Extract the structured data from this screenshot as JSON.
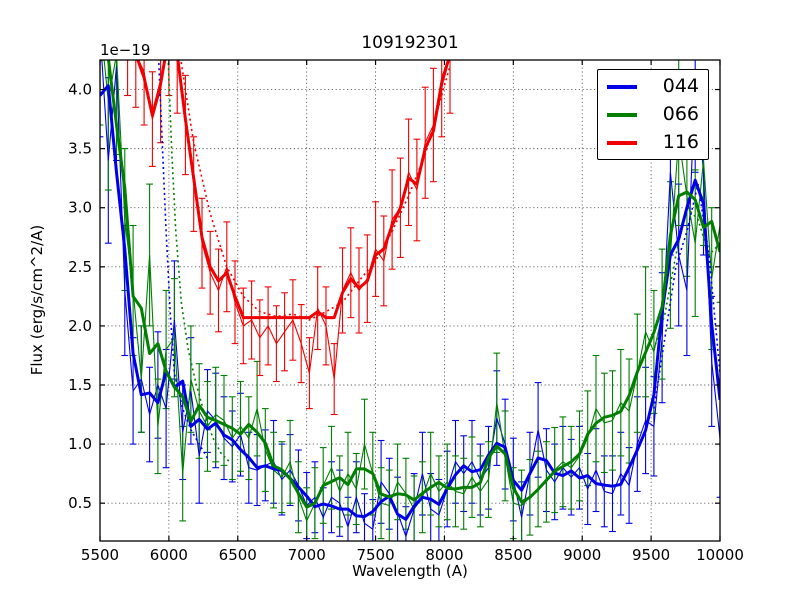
{
  "chart_data": {
    "type": "line",
    "title": "109192301",
    "xlabel": "Wavelength (A)",
    "ylabel": "Flux (erg/s/cm^2/A)",
    "y_offset_label": "1e−19",
    "xlim": [
      5500,
      10000
    ],
    "ylim": [
      0.18,
      4.25
    ],
    "xticks": [
      5500,
      6000,
      6500,
      7000,
      7500,
      8000,
      8500,
      9000,
      9500,
      10000
    ],
    "yticks": [
      0.5,
      1.0,
      1.5,
      2.0,
      2.5,
      3.0,
      3.5,
      4.0
    ],
    "grid": true,
    "grid_style": "dotted",
    "background": "#ffffff",
    "axes_color": "#000000",
    "grid_color": "#5a5a5a",
    "legend": {
      "position": "upper right",
      "entries": [
        "044",
        "066",
        "116"
      ]
    },
    "series": [
      {
        "name": "044",
        "color": "#0000e6",
        "x_start": 5500,
        "x_step": 60,
        "values": [
          4.5,
          3.4,
          4.2,
          2.3,
          1.45,
          1.55,
          1.25,
          1.5,
          1.3,
          2.05,
          1.1,
          1.45,
          0.9,
          1.28,
          1.2,
          1.05,
          0.98,
          1.08,
          0.8,
          0.78,
          0.82,
          0.85,
          0.7,
          0.78,
          0.65,
          0.48,
          0.55,
          0.38,
          0.55,
          0.5,
          0.3,
          0.55,
          0.33,
          0.28,
          0.68,
          0.58,
          0.42,
          0.22,
          0.45,
          0.75,
          0.45,
          0.4,
          0.62,
          0.85,
          0.75,
          0.85,
          0.7,
          0.8,
          1.22,
          1.0,
          0.7,
          0.38,
          0.75,
          1.12,
          0.78,
          0.68,
          0.8,
          0.72,
          0.8,
          0.62,
          0.78,
          0.6,
          0.58,
          0.75,
          0.65,
          1.0,
          1.2,
          1.15,
          1.9,
          3.3,
          2.6,
          2.3,
          4.1,
          3.3,
          1.7,
          1.05
        ],
        "errors": [
          0.9,
          0.7,
          0.8,
          0.55,
          0.45,
          0.45,
          0.4,
          0.45,
          0.5,
          0.5,
          0.4,
          0.45,
          0.4,
          0.35,
          0.4,
          0.35,
          0.3,
          0.35,
          0.3,
          0.3,
          0.3,
          0.35,
          0.3,
          0.3,
          0.3,
          0.28,
          0.3,
          0.25,
          0.3,
          0.28,
          0.25,
          0.3,
          0.25,
          0.25,
          0.35,
          0.3,
          0.3,
          0.25,
          0.3,
          0.35,
          0.3,
          0.3,
          0.32,
          0.35,
          0.32,
          0.35,
          0.3,
          0.35,
          0.4,
          0.38,
          0.35,
          0.3,
          0.35,
          0.4,
          0.35,
          0.32,
          0.35,
          0.32,
          0.35,
          0.3,
          0.35,
          0.3,
          0.32,
          0.35,
          0.32,
          0.4,
          0.45,
          0.42,
          0.55,
          0.7,
          0.6,
          0.55,
          0.8,
          0.7,
          0.55,
          0.5
        ]
      },
      {
        "name": "066",
        "color": "#007f00",
        "x_start": 5500,
        "x_step": 60,
        "values": [
          4.6,
          3.9,
          4.3,
          2.9,
          2.3,
          1.55,
          2.6,
          1.15,
          1.8,
          1.9,
          0.75,
          1.55,
          1.28,
          1.15,
          1.25,
          1.2,
          1.05,
          1.15,
          1.05,
          1.3,
          0.95,
          0.78,
          0.72,
          0.85,
          0.55,
          0.35,
          0.5,
          0.65,
          0.8,
          0.6,
          0.75,
          0.62,
          1.0,
          0.75,
          0.5,
          0.48,
          0.68,
          0.58,
          0.45,
          0.55,
          0.75,
          0.6,
          0.68,
          0.6,
          0.58,
          0.72,
          0.6,
          0.7,
          1.35,
          0.9,
          0.5,
          0.48,
          0.55,
          0.62,
          0.68,
          0.78,
          0.85,
          0.8,
          0.9,
          1.05,
          1.3,
          1.18,
          1.2,
          1.35,
          1.28,
          1.6,
          1.95,
          1.78,
          2.1,
          2.6,
          3.6,
          3.1,
          2.7,
          3.4,
          2.4,
          2.85
        ],
        "errors": [
          0.9,
          0.75,
          0.85,
          0.6,
          0.55,
          0.45,
          0.6,
          0.4,
          0.5,
          0.5,
          0.4,
          0.45,
          0.4,
          0.38,
          0.4,
          0.38,
          0.35,
          0.38,
          0.35,
          0.4,
          0.35,
          0.32,
          0.3,
          0.35,
          0.3,
          0.28,
          0.3,
          0.32,
          0.35,
          0.3,
          0.35,
          0.3,
          0.38,
          0.35,
          0.3,
          0.3,
          0.32,
          0.3,
          0.28,
          0.3,
          0.35,
          0.3,
          0.32,
          0.3,
          0.3,
          0.34,
          0.3,
          0.32,
          0.42,
          0.38,
          0.3,
          0.3,
          0.32,
          0.32,
          0.34,
          0.36,
          0.38,
          0.35,
          0.38,
          0.4,
          0.45,
          0.42,
          0.42,
          0.45,
          0.44,
          0.5,
          0.55,
          0.52,
          0.55,
          0.62,
          0.75,
          0.68,
          0.62,
          0.72,
          0.6,
          0.65
        ]
      },
      {
        "name": "116",
        "color": "#f00000",
        "x_start": 5700,
        "x_step": 60,
        "values": [
          4.45,
          4.3,
          4.15,
          3.75,
          4.0,
          4.45,
          4.25,
          3.7,
          3.2,
          2.7,
          2.45,
          2.3,
          2.5,
          2.2,
          2.0,
          2.05,
          1.9,
          2.0,
          1.85,
          1.95,
          2.05,
          1.85,
          1.6,
          2.15,
          2.0,
          1.55,
          2.3,
          2.45,
          2.3,
          2.4,
          2.65,
          2.55,
          2.9,
          3.0,
          3.3,
          3.15,
          3.55,
          3.7,
          4.1,
          4.3
        ],
        "errors": [
          0.5,
          0.45,
          0.45,
          0.4,
          0.45,
          0.5,
          0.45,
          0.42,
          0.4,
          0.38,
          0.35,
          0.35,
          0.38,
          0.35,
          0.32,
          0.33,
          0.32,
          0.33,
          0.32,
          0.33,
          0.34,
          0.33,
          0.3,
          0.35,
          0.33,
          0.3,
          0.36,
          0.38,
          0.36,
          0.37,
          0.4,
          0.38,
          0.42,
          0.42,
          0.45,
          0.43,
          0.47,
          0.48,
          0.5,
          0.5
        ],
        "smooth": [
          4.4,
          4.3,
          4.1,
          3.78,
          4.05,
          4.45,
          4.3,
          3.75,
          3.25,
          2.75,
          2.5,
          2.38,
          2.45,
          2.25,
          2.07,
          2.07,
          2.07,
          2.07,
          2.07,
          2.07,
          2.07,
          2.07,
          2.07,
          2.12,
          2.07,
          2.07,
          2.28,
          2.4,
          2.32,
          2.38,
          2.6,
          2.65,
          2.85,
          3.0,
          3.25,
          3.2,
          3.5,
          3.65,
          4.05,
          4.3
        ]
      }
    ],
    "dotted_segments": [
      {
        "series": "044",
        "x": [
          5920,
          5950,
          5980,
          6010,
          6040,
          6100,
          6160,
          6220,
          6280
        ],
        "y": [
          4.4,
          3.6,
          2.8,
          2.1,
          1.6,
          1.3,
          1.12,
          1.0,
          0.88
        ]
      },
      {
        "series": "066",
        "x": [
          5990,
          6020,
          6050,
          6090,
          6140,
          6200,
          6260,
          6320,
          6380,
          6440
        ],
        "y": [
          4.4,
          3.5,
          2.8,
          2.2,
          1.8,
          1.5,
          1.25,
          1.05,
          0.92,
          0.85
        ]
      },
      {
        "series": "116",
        "x": [
          6060,
          6180,
          6300,
          6420,
          6540,
          6660,
          6780,
          6900,
          7020,
          7140,
          7260,
          7380,
          7500,
          7620,
          7740,
          7860,
          7980,
          8040
        ],
        "y": [
          4.45,
          3.55,
          2.95,
          2.5,
          2.25,
          2.12,
          2.08,
          2.1,
          2.05,
          2.12,
          2.2,
          2.38,
          2.55,
          2.8,
          3.1,
          3.45,
          3.95,
          4.2
        ]
      },
      {
        "series": "044",
        "x": [
          9520,
          9600,
          9680,
          9760,
          9840,
          9920,
          10000
        ],
        "y": [
          1.3,
          1.9,
          2.5,
          2.8,
          3.2,
          2.6,
          1.6
        ]
      },
      {
        "series": "066",
        "x": [
          9520,
          9600,
          9680,
          9760,
          9840,
          9920,
          10000
        ],
        "y": [
          1.8,
          2.1,
          2.6,
          3.0,
          2.9,
          2.6,
          2.7
        ]
      }
    ]
  }
}
